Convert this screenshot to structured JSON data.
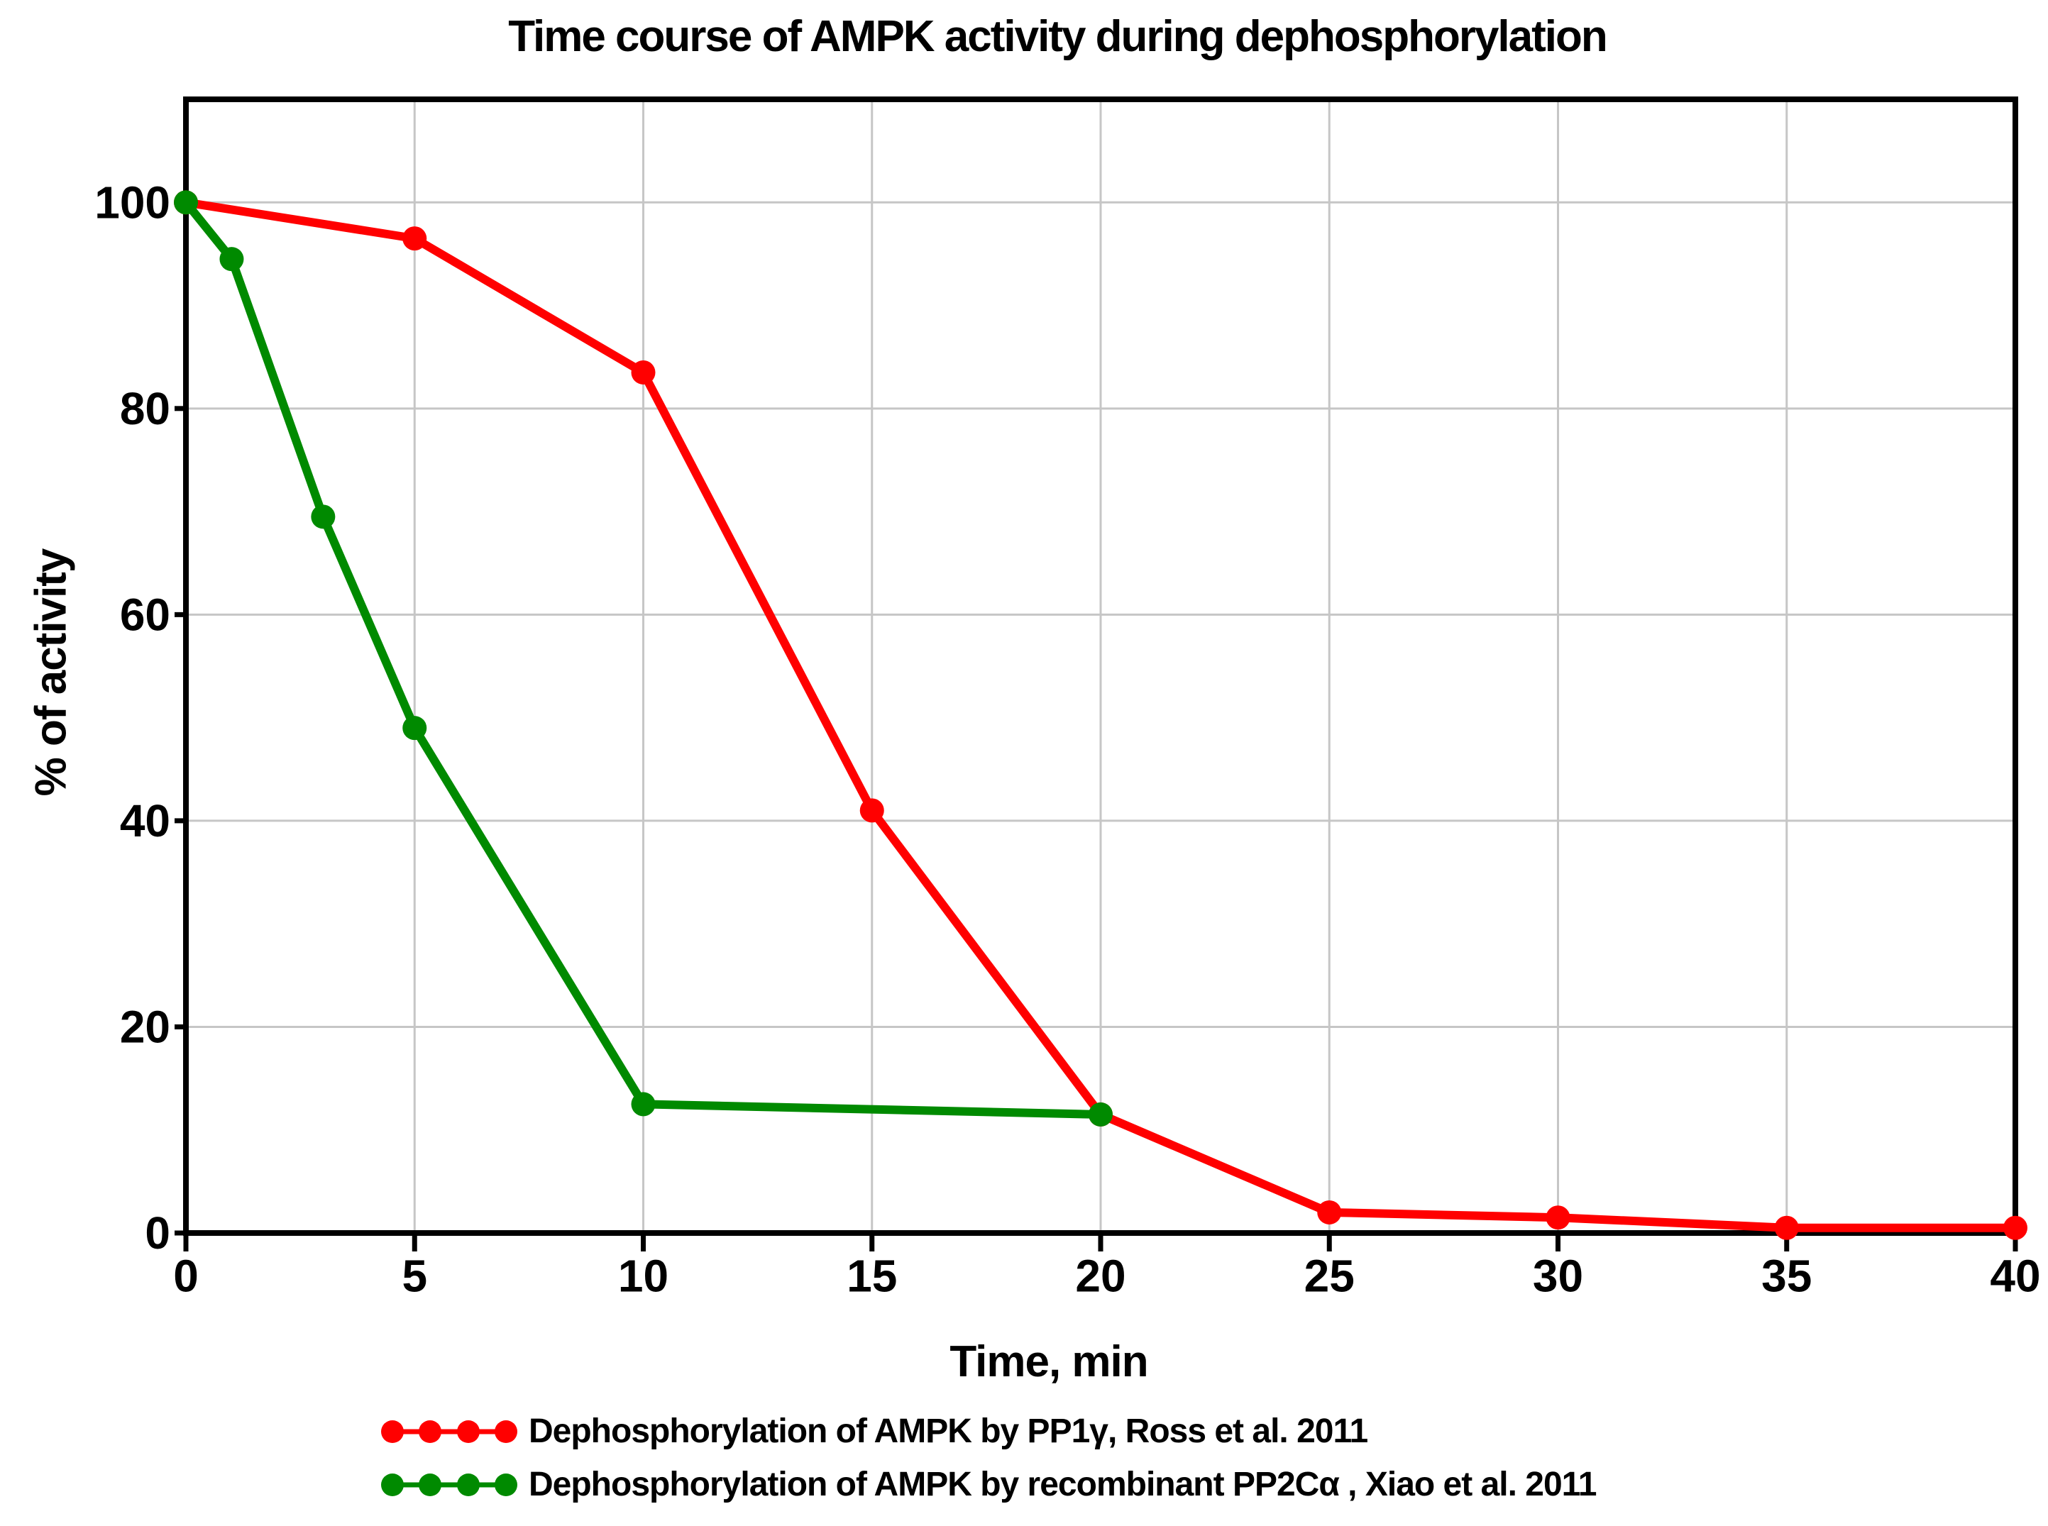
{
  "title": "Time course of AMPK activity during dephosphorylation",
  "axes": {
    "x_label": "Time, min",
    "y_label": "% of activity"
  },
  "chart_data": {
    "type": "line",
    "title": "Time course of AMPK activity during dephosphorylation",
    "xlabel": "Time, min",
    "ylabel": "% of activity",
    "xlim": [
      0,
      40
    ],
    "ylim": [
      0,
      110
    ],
    "xticks": [
      0,
      5,
      10,
      15,
      20,
      25,
      30,
      35,
      40
    ],
    "yticks": [
      0,
      20,
      40,
      60,
      80,
      100
    ],
    "grid": true,
    "legend_position": "bottom-left",
    "series": [
      {
        "name": "Dephosphorylation of AMPK by PP1γ, Ross et al. 2011",
        "color": "#ff0000",
        "marker": "circle",
        "x": [
          0,
          5,
          10,
          15,
          20,
          25,
          30,
          35,
          40
        ],
        "y": [
          100,
          96.5,
          83.5,
          41,
          11.5,
          2,
          1.5,
          0.5,
          0.5
        ]
      },
      {
        "name": "Dephosphorylation of AMPK by recombinant PP2Cα , Xiao et al. 2011",
        "color": "#008a00",
        "marker": "circle",
        "x": [
          0,
          1,
          3,
          5,
          10,
          20
        ],
        "y": [
          100,
          94.5,
          69.5,
          49,
          12.5,
          11.5
        ]
      }
    ]
  },
  "legend": {
    "items": [
      {
        "label": "Dephosphorylation of AMPK by PP1γ, Ross et al. 2011",
        "color": "#ff0000"
      },
      {
        "label": "Dephosphorylation of AMPK by recombinant PP2Cα , Xiao et al. 2011",
        "color": "#008a00"
      }
    ]
  },
  "style": {
    "background": "#ffffff",
    "grid_color": "#c6c6c6",
    "axis_color": "#000000",
    "tick_label_color": "#000000"
  }
}
